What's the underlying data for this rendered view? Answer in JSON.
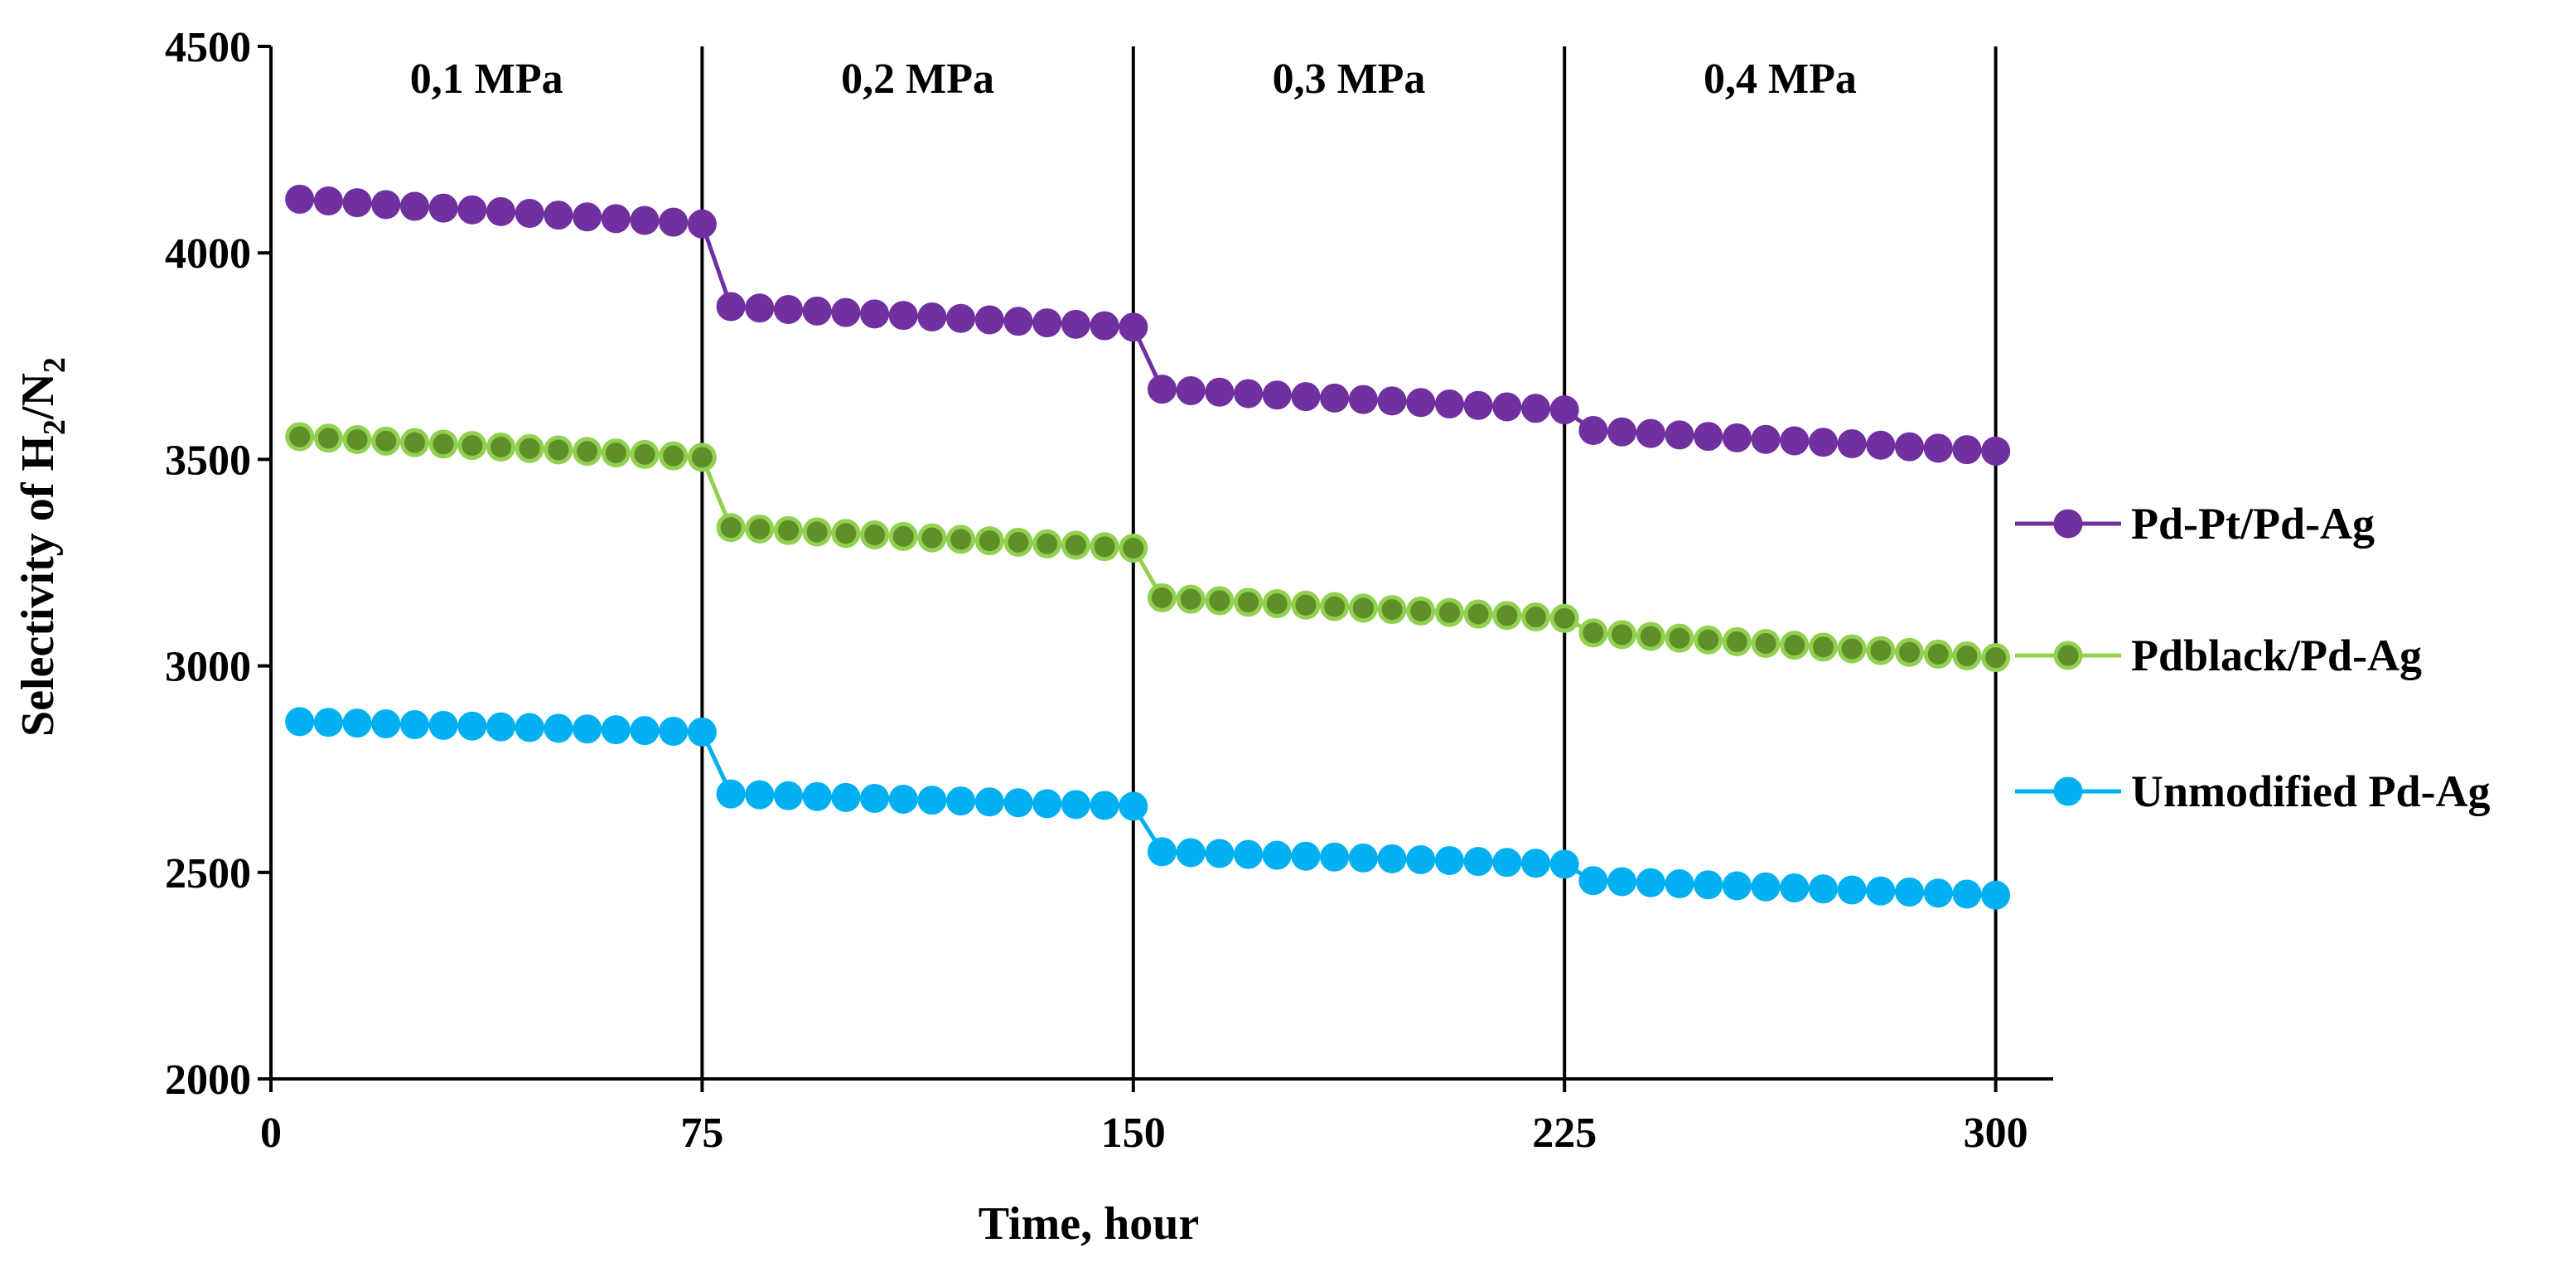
{
  "chart_data": {
    "type": "line",
    "title": "",
    "xlabel": "Time, hour",
    "ylabel": {
      "prefix": "Selectivity of H",
      "sub1": "2",
      "mid": "/N",
      "sub2": "2"
    },
    "xlim": [
      0,
      310
    ],
    "ylim": [
      2000,
      4500
    ],
    "x_ticks": [
      0,
      75,
      150,
      225,
      300
    ],
    "x_tick_labels": [
      "0",
      "75",
      "150",
      "225",
      "300"
    ],
    "y_ticks": [
      2000,
      2500,
      3000,
      3500,
      4000,
      4500
    ],
    "y_tick_labels": [
      "2000",
      "2500",
      "3000",
      "3500",
      "4000",
      "4500"
    ],
    "grid": false,
    "legend_position": "right",
    "vertical_lines_x": [
      75,
      150,
      225,
      300
    ],
    "regions": [
      {
        "label": "0,1 MPa",
        "x_from": 0,
        "x_to": 75
      },
      {
        "label": "0,2 MPa",
        "x_from": 75,
        "x_to": 150
      },
      {
        "label": "0,3 MPa",
        "x_from": 150,
        "x_to": 225
      },
      {
        "label": "0,4 MPa",
        "x_from": 225,
        "x_to": 300
      }
    ],
    "segments": [
      {
        "x_start": 5,
        "x_end": 75
      },
      {
        "x_start": 80,
        "x_end": 150
      },
      {
        "x_start": 155,
        "x_end": 225
      },
      {
        "x_start": 230,
        "x_end": 300
      }
    ],
    "points_per_segment": 15,
    "series": [
      {
        "name": "Pd-Pt/Pd-Ag",
        "color": "#7030A0",
        "marker_edge": "#7030A0",
        "segment_y": [
          [
            4130,
            4070
          ],
          [
            3870,
            3820
          ],
          [
            3670,
            3620
          ],
          [
            3570,
            3520
          ]
        ]
      },
      {
        "name": "Pdblack/Pd-Ag",
        "color": "#92D050",
        "marker_edge": "#92D050",
        "marker_fill": "#5E8F2A",
        "segment_y": [
          [
            3555,
            3505
          ],
          [
            3335,
            3285
          ],
          [
            3165,
            3115
          ],
          [
            3080,
            3020
          ]
        ]
      },
      {
        "name": "Unmodified Pd-Ag",
        "color": "#00B0F0",
        "marker_edge": "#00B0F0",
        "segment_y": [
          [
            2865,
            2840
          ],
          [
            2690,
            2660
          ],
          [
            2550,
            2520
          ],
          [
            2480,
            2445
          ]
        ]
      }
    ]
  }
}
